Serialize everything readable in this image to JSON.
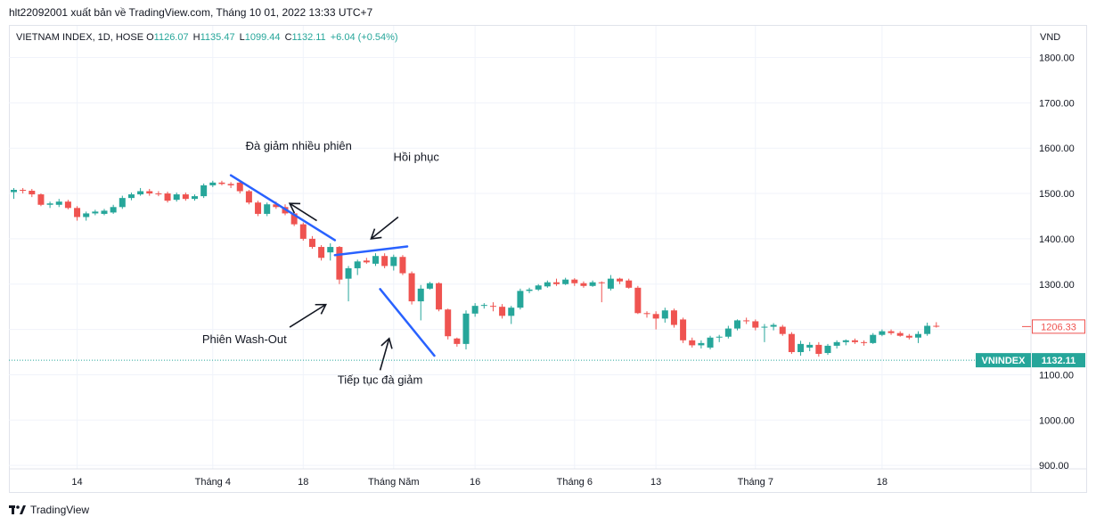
{
  "header": {
    "published_by": "hlt22092001 xuất bản về TradingView.com, Tháng 10 01, 2022 13:33 UTC+7"
  },
  "legend": {
    "symbol": "VIETNAM INDEX, 1D, HOSE",
    "o_label": "O",
    "o_value": "1126.07",
    "h_label": "H",
    "h_value": "1135.47",
    "l_label": "L",
    "l_value": "1099.44",
    "c_label": "C",
    "c_value": "1132.11",
    "change": "+6.04 (+0.54%)"
  },
  "currency": "VND",
  "footer": {
    "brand": "TradingView",
    "logo_icon": "tradingview-logo-icon"
  },
  "colors": {
    "up": "#26a69a",
    "down": "#ef5350",
    "trendline": "#2962ff",
    "grid": "#f0f3fa"
  },
  "chart_data": {
    "type": "candlestick",
    "title": "VIETNAM INDEX, 1D, HOSE",
    "ylim": [
      880,
      1850
    ],
    "y_ticks": [
      900,
      1000,
      1100,
      1200,
      1300,
      1400,
      1500,
      1600,
      1700,
      1800
    ],
    "y_tick_labels": [
      "900.00",
      "1000.00",
      "1100.00",
      "1200.00",
      "1300.00",
      "1400.00",
      "1500.00",
      "1600.00",
      "1700.00",
      "1800.00"
    ],
    "x_ticks": [
      {
        "index": 7,
        "label": "14"
      },
      {
        "index": 22,
        "label": "Tháng 4"
      },
      {
        "index": 32,
        "label": "18"
      },
      {
        "index": 42,
        "label": "Tháng Năm"
      },
      {
        "index": 51,
        "label": "16"
      },
      {
        "index": 62,
        "label": "Tháng 6"
      },
      {
        "index": 71,
        "label": "13"
      },
      {
        "index": 82,
        "label": "Tháng 7"
      },
      {
        "index": 96,
        "label": "18"
      }
    ],
    "candles": [
      {
        "o": 1503,
        "h": 1512,
        "l": 1488,
        "c": 1508
      },
      {
        "o": 1508,
        "h": 1512,
        "l": 1500,
        "c": 1506
      },
      {
        "o": 1506,
        "h": 1510,
        "l": 1492,
        "c": 1498
      },
      {
        "o": 1498,
        "h": 1500,
        "l": 1472,
        "c": 1475
      },
      {
        "o": 1475,
        "h": 1482,
        "l": 1468,
        "c": 1478
      },
      {
        "o": 1475,
        "h": 1488,
        "l": 1470,
        "c": 1482
      },
      {
        "o": 1482,
        "h": 1486,
        "l": 1465,
        "c": 1468
      },
      {
        "o": 1468,
        "h": 1472,
        "l": 1440,
        "c": 1448
      },
      {
        "o": 1448,
        "h": 1460,
        "l": 1440,
        "c": 1456
      },
      {
        "o": 1456,
        "h": 1464,
        "l": 1452,
        "c": 1460
      },
      {
        "o": 1455,
        "h": 1466,
        "l": 1452,
        "c": 1462
      },
      {
        "o": 1458,
        "h": 1475,
        "l": 1455,
        "c": 1470
      },
      {
        "o": 1470,
        "h": 1495,
        "l": 1466,
        "c": 1490
      },
      {
        "o": 1490,
        "h": 1502,
        "l": 1485,
        "c": 1498
      },
      {
        "o": 1498,
        "h": 1512,
        "l": 1495,
        "c": 1505
      },
      {
        "o": 1505,
        "h": 1510,
        "l": 1495,
        "c": 1500
      },
      {
        "o": 1500,
        "h": 1505,
        "l": 1494,
        "c": 1498
      },
      {
        "o": 1500,
        "h": 1504,
        "l": 1480,
        "c": 1484
      },
      {
        "o": 1486,
        "h": 1502,
        "l": 1482,
        "c": 1498
      },
      {
        "o": 1498,
        "h": 1502,
        "l": 1484,
        "c": 1488
      },
      {
        "o": 1488,
        "h": 1498,
        "l": 1484,
        "c": 1494
      },
      {
        "o": 1494,
        "h": 1522,
        "l": 1490,
        "c": 1518
      },
      {
        "o": 1518,
        "h": 1528,
        "l": 1514,
        "c": 1524
      },
      {
        "o": 1524,
        "h": 1528,
        "l": 1518,
        "c": 1521
      },
      {
        "o": 1521,
        "h": 1525,
        "l": 1512,
        "c": 1518
      },
      {
        "o": 1524,
        "h": 1528,
        "l": 1500,
        "c": 1505
      },
      {
        "o": 1505,
        "h": 1508,
        "l": 1476,
        "c": 1480
      },
      {
        "o": 1480,
        "h": 1484,
        "l": 1450,
        "c": 1455
      },
      {
        "o": 1455,
        "h": 1480,
        "l": 1450,
        "c": 1476
      },
      {
        "o": 1476,
        "h": 1482,
        "l": 1466,
        "c": 1470
      },
      {
        "o": 1470,
        "h": 1476,
        "l": 1452,
        "c": 1456
      },
      {
        "o": 1456,
        "h": 1460,
        "l": 1428,
        "c": 1432
      },
      {
        "o": 1432,
        "h": 1436,
        "l": 1396,
        "c": 1400
      },
      {
        "o": 1400,
        "h": 1406,
        "l": 1378,
        "c": 1382
      },
      {
        "o": 1382,
        "h": 1386,
        "l": 1352,
        "c": 1358
      },
      {
        "o": 1370,
        "h": 1390,
        "l": 1352,
        "c": 1382
      },
      {
        "o": 1382,
        "h": 1384,
        "l": 1300,
        "c": 1310
      },
      {
        "o": 1312,
        "h": 1340,
        "l": 1262,
        "c": 1335
      },
      {
        "o": 1335,
        "h": 1354,
        "l": 1320,
        "c": 1350
      },
      {
        "o": 1352,
        "h": 1358,
        "l": 1345,
        "c": 1348
      },
      {
        "o": 1345,
        "h": 1368,
        "l": 1340,
        "c": 1362
      },
      {
        "o": 1362,
        "h": 1368,
        "l": 1335,
        "c": 1340
      },
      {
        "o": 1340,
        "h": 1365,
        "l": 1330,
        "c": 1360
      },
      {
        "o": 1360,
        "h": 1364,
        "l": 1320,
        "c": 1324
      },
      {
        "o": 1324,
        "h": 1328,
        "l": 1255,
        "c": 1262
      },
      {
        "o": 1262,
        "h": 1298,
        "l": 1220,
        "c": 1290
      },
      {
        "o": 1290,
        "h": 1305,
        "l": 1288,
        "c": 1302
      },
      {
        "o": 1302,
        "h": 1304,
        "l": 1240,
        "c": 1244
      },
      {
        "o": 1244,
        "h": 1246,
        "l": 1178,
        "c": 1185
      },
      {
        "o": 1180,
        "h": 1182,
        "l": 1162,
        "c": 1168
      },
      {
        "o": 1168,
        "h": 1242,
        "l": 1156,
        "c": 1235
      },
      {
        "o": 1235,
        "h": 1258,
        "l": 1228,
        "c": 1252
      },
      {
        "o": 1252,
        "h": 1258,
        "l": 1246,
        "c": 1254
      },
      {
        "o": 1252,
        "h": 1260,
        "l": 1240,
        "c": 1250
      },
      {
        "o": 1250,
        "h": 1256,
        "l": 1224,
        "c": 1230
      },
      {
        "o": 1230,
        "h": 1252,
        "l": 1212,
        "c": 1248
      },
      {
        "o": 1248,
        "h": 1290,
        "l": 1244,
        "c": 1285
      },
      {
        "o": 1285,
        "h": 1292,
        "l": 1280,
        "c": 1288
      },
      {
        "o": 1288,
        "h": 1300,
        "l": 1285,
        "c": 1297
      },
      {
        "o": 1295,
        "h": 1308,
        "l": 1292,
        "c": 1304
      },
      {
        "o": 1304,
        "h": 1312,
        "l": 1296,
        "c": 1300
      },
      {
        "o": 1300,
        "h": 1314,
        "l": 1298,
        "c": 1310
      },
      {
        "o": 1310,
        "h": 1313,
        "l": 1296,
        "c": 1302
      },
      {
        "o": 1302,
        "h": 1306,
        "l": 1292,
        "c": 1296
      },
      {
        "o": 1296,
        "h": 1308,
        "l": 1294,
        "c": 1304
      },
      {
        "o": 1304,
        "h": 1306,
        "l": 1260,
        "c": 1302
      },
      {
        "o": 1290,
        "h": 1320,
        "l": 1286,
        "c": 1312
      },
      {
        "o": 1312,
        "h": 1314,
        "l": 1300,
        "c": 1306
      },
      {
        "o": 1308,
        "h": 1312,
        "l": 1290,
        "c": 1292
      },
      {
        "o": 1292,
        "h": 1296,
        "l": 1234,
        "c": 1236
      },
      {
        "o": 1236,
        "h": 1240,
        "l": 1226,
        "c": 1234
      },
      {
        "o": 1234,
        "h": 1240,
        "l": 1200,
        "c": 1224
      },
      {
        "o": 1224,
        "h": 1248,
        "l": 1215,
        "c": 1242
      },
      {
        "o": 1242,
        "h": 1246,
        "l": 1204,
        "c": 1210
      },
      {
        "o": 1222,
        "h": 1226,
        "l": 1170,
        "c": 1176
      },
      {
        "o": 1176,
        "h": 1182,
        "l": 1160,
        "c": 1165
      },
      {
        "o": 1165,
        "h": 1176,
        "l": 1158,
        "c": 1170
      },
      {
        "o": 1160,
        "h": 1186,
        "l": 1156,
        "c": 1182
      },
      {
        "o": 1182,
        "h": 1188,
        "l": 1172,
        "c": 1184
      },
      {
        "o": 1184,
        "h": 1208,
        "l": 1180,
        "c": 1202
      },
      {
        "o": 1202,
        "h": 1222,
        "l": 1198,
        "c": 1220
      },
      {
        "o": 1220,
        "h": 1226,
        "l": 1212,
        "c": 1218
      },
      {
        "o": 1218,
        "h": 1222,
        "l": 1198,
        "c": 1204
      },
      {
        "o": 1204,
        "h": 1212,
        "l": 1172,
        "c": 1206
      },
      {
        "o": 1206,
        "h": 1214,
        "l": 1198,
        "c": 1210
      },
      {
        "o": 1206,
        "h": 1210,
        "l": 1186,
        "c": 1190
      },
      {
        "o": 1190,
        "h": 1194,
        "l": 1146,
        "c": 1150
      },
      {
        "o": 1150,
        "h": 1175,
        "l": 1142,
        "c": 1168
      },
      {
        "o": 1160,
        "h": 1172,
        "l": 1152,
        "c": 1166
      },
      {
        "o": 1166,
        "h": 1172,
        "l": 1140,
        "c": 1146
      },
      {
        "o": 1148,
        "h": 1168,
        "l": 1144,
        "c": 1164
      },
      {
        "o": 1164,
        "h": 1176,
        "l": 1158,
        "c": 1172
      },
      {
        "o": 1172,
        "h": 1178,
        "l": 1165,
        "c": 1176
      },
      {
        "o": 1176,
        "h": 1180,
        "l": 1168,
        "c": 1172
      },
      {
        "o": 1172,
        "h": 1176,
        "l": 1164,
        "c": 1170
      },
      {
        "o": 1170,
        "h": 1192,
        "l": 1168,
        "c": 1188
      },
      {
        "o": 1188,
        "h": 1200,
        "l": 1185,
        "c": 1196
      },
      {
        "o": 1196,
        "h": 1200,
        "l": 1188,
        "c": 1192
      },
      {
        "o": 1192,
        "h": 1196,
        "l": 1184,
        "c": 1186
      },
      {
        "o": 1186,
        "h": 1190,
        "l": 1178,
        "c": 1182
      },
      {
        "o": 1182,
        "h": 1196,
        "l": 1170,
        "c": 1190
      },
      {
        "o": 1190,
        "h": 1215,
        "l": 1186,
        "c": 1208
      },
      {
        "o": 1208,
        "h": 1216,
        "l": 1204,
        "c": 1206
      }
    ],
    "price_labels": [
      {
        "label": "",
        "value_text": "1206.33",
        "value": 1206.33,
        "style": "outline"
      },
      {
        "label": "VNINDEX",
        "value_text": "1132.11",
        "value": 1132.11,
        "style": "filled"
      }
    ],
    "trendlines": [
      {
        "from": [
          24,
          1540
        ],
        "to": [
          35.5,
          1397
        ]
      },
      {
        "from": [
          35.5,
          1364
        ],
        "to": [
          43.5,
          1383
        ]
      },
      {
        "from": [
          40.5,
          1289
        ],
        "to": [
          46.5,
          1142
        ]
      }
    ],
    "annotations": [
      {
        "text": "Đà giảm nhiều phiên",
        "anchor": [
          31.5,
          1596
        ]
      },
      {
        "text": "Hồi phục",
        "anchor": [
          44.5,
          1572
        ]
      },
      {
        "text": "Phiên Wash-Out",
        "anchor": [
          25.5,
          1170
        ]
      },
      {
        "text": "Tiếp tục đà giảm",
        "anchor": [
          40.5,
          1080
        ]
      }
    ],
    "arrows": [
      {
        "from": [
          33.5,
          1440
        ],
        "to": [
          30.5,
          1478
        ]
      },
      {
        "from": [
          42.5,
          1448
        ],
        "to": [
          39.5,
          1400
        ]
      },
      {
        "from": [
          30.5,
          1205
        ],
        "to": [
          34.5,
          1255
        ]
      },
      {
        "from": [
          40.5,
          1110
        ],
        "to": [
          41.5,
          1180
        ]
      }
    ]
  }
}
